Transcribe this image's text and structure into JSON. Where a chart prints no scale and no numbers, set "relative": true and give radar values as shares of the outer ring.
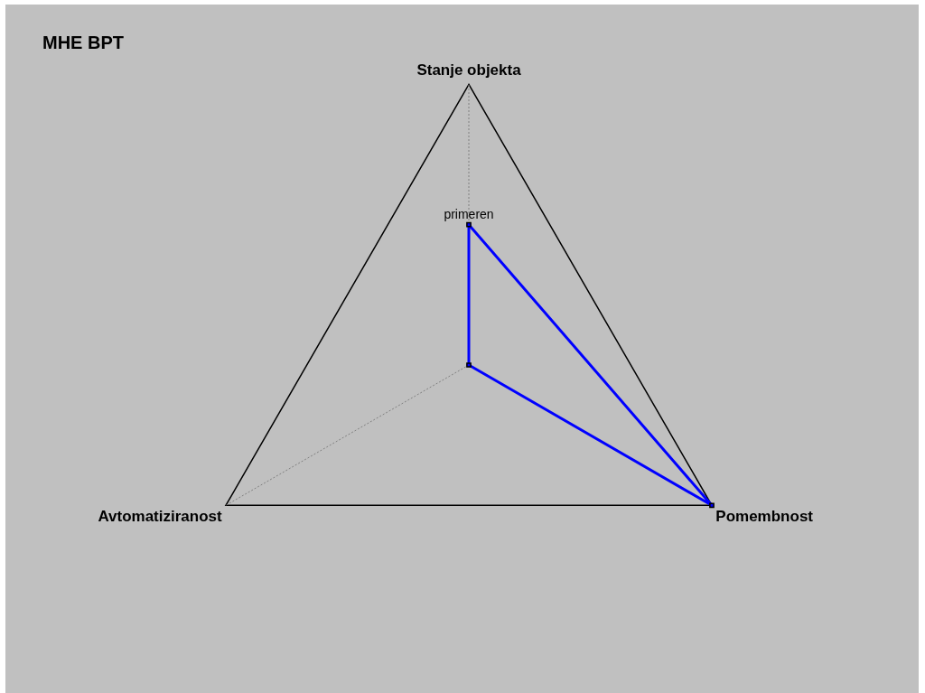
{
  "chart_data": {
    "type": "radar",
    "title": "MHE BPT",
    "categories": [
      "Stanje objekta",
      "Pomembnost",
      "Avtomatiziranost"
    ],
    "relative": true,
    "series": [
      {
        "color": "#0000ff",
        "values": [
          0.5,
          1,
          0
        ]
      }
    ],
    "annotations": [
      {
        "text": "primeren",
        "x": "Stanje objekta"
      }
    ],
    "grid": true,
    "marker": "square"
  }
}
